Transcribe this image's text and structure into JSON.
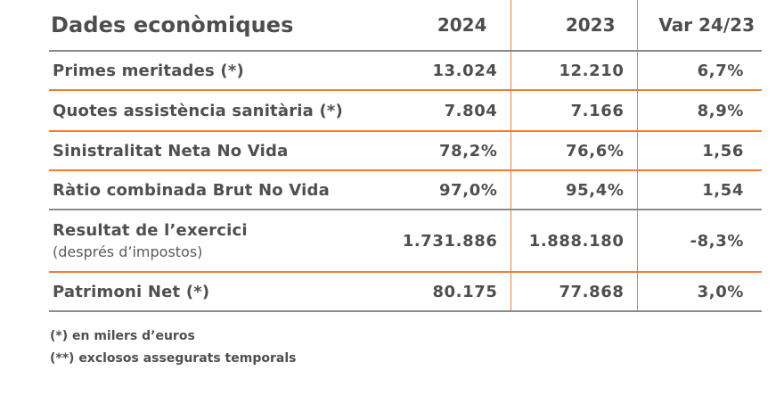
{
  "table": {
    "title": "Dades econòmiques",
    "columns": [
      "2024",
      "2023",
      "Var 24/23"
    ],
    "rows": [
      {
        "label": "Primes meritades (*)",
        "sublabel": "",
        "v2024": "13.024",
        "v2023": "12.210",
        "var": "6,7%"
      },
      {
        "label": "Quotes assistència sanitària (*)",
        "sublabel": "",
        "v2024": "7.804",
        "v2023": "7.166",
        "var": "8,9%"
      },
      {
        "label": "Sinistralitat Neta No Vida",
        "sublabel": "",
        "v2024": "78,2%",
        "v2023": "76,6%",
        "var": "1,56"
      },
      {
        "label": "Ràtio combinada Brut No Vida",
        "sublabel": "",
        "v2024": "97,0%",
        "v2023": "95,4%",
        "var": "1,54"
      },
      {
        "label": "Resultat de l’exercici",
        "sublabel": "(després d’impostos)",
        "v2024": "1.731.886",
        "v2023": "1.888.180",
        "var": "-8,3%"
      },
      {
        "label": "Patrimoni Net (*)",
        "sublabel": "",
        "v2024": "80.175",
        "v2023": "77.868",
        "var": "3,0%"
      }
    ]
  },
  "notes": [
    "(*) en milers d’euros",
    "(**) exclosos assegurats temporals"
  ],
  "colors": {
    "accent": "#e8803a",
    "rule": "#8a8a8a",
    "text": "#4f4f4f"
  }
}
